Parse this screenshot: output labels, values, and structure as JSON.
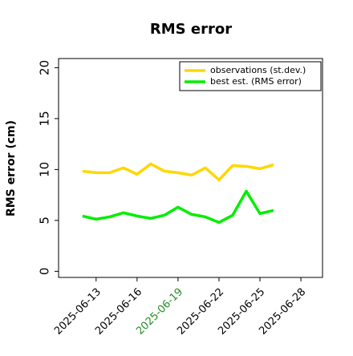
{
  "chart_data": {
    "type": "line",
    "title": "RMS error",
    "ylabel": "RMS error (cm)",
    "x": [
      "2025-06-12",
      "2025-06-13",
      "2025-06-14",
      "2025-06-15",
      "2025-06-16",
      "2025-06-17",
      "2025-06-18",
      "2025-06-19",
      "2025-06-20",
      "2025-06-21",
      "2025-06-22",
      "2025-06-23",
      "2025-06-24",
      "2025-06-25",
      "2025-06-26"
    ],
    "series": [
      {
        "name": "observations (st.dev.)",
        "color": "#ffd700",
        "values": [
          9.84,
          9.69,
          9.69,
          10.16,
          9.53,
          10.55,
          9.84,
          9.69,
          9.45,
          10.16,
          8.98,
          10.39,
          10.31,
          10.08,
          10.47
        ]
      },
      {
        "name": "best est. (RMS error)",
        "color": "#00ee00",
        "values": [
          5.43,
          5.12,
          5.35,
          5.75,
          5.43,
          5.2,
          5.51,
          6.3,
          5.59,
          5.35,
          4.8,
          5.51,
          7.87,
          5.67,
          5.98
        ]
      }
    ],
    "xlim": [
      "2025-06-10T06:00Z",
      "2025-06-29T14:00Z"
    ],
    "xticks": [
      "2025-06-13",
      "2025-06-16",
      "2025-06-19",
      "2025-06-22",
      "2025-06-25",
      "2025-06-28"
    ],
    "highlight_xtick": 2,
    "highlight_color": "#228b22",
    "ylim": [
      -0.6,
      20.9
    ],
    "yticks": [
      0,
      5,
      10,
      15,
      20
    ],
    "legend": "upper right"
  }
}
